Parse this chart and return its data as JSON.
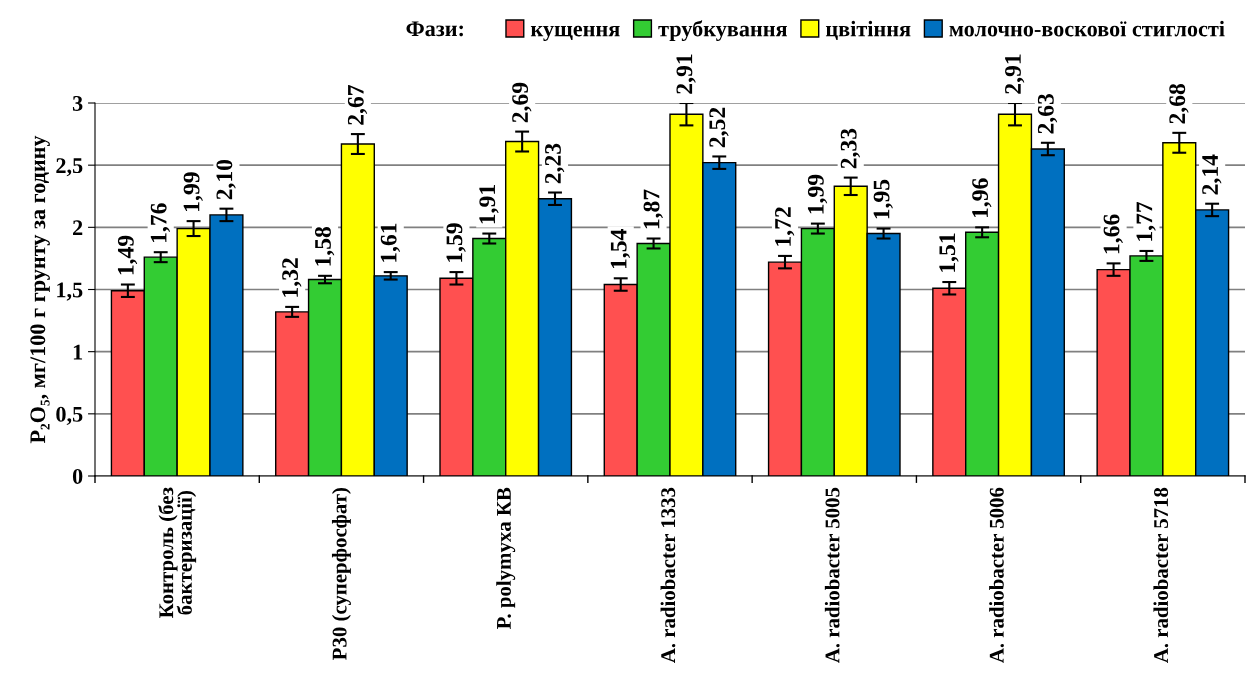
{
  "chart_data": {
    "type": "bar",
    "ylabel": "P₂O₅, мг/100 г грунту за годину",
    "legend_title": "Фази:",
    "legend": "top",
    "categories": [
      "Контроль (без\nбактеризації)",
      "Р30 (суперфосфат)",
      "P. polymyxa КВ",
      "A. radiobacter 1333",
      "A. radiobacter 5005",
      "A. radiobacter 5006",
      "A. radiobacter 5718"
    ],
    "series": [
      {
        "name": "кущення",
        "color": "#ff5050",
        "values": [
          1.49,
          1.32,
          1.59,
          1.54,
          1.72,
          1.51,
          1.66
        ],
        "errors": [
          0.05,
          0.04,
          0.05,
          0.05,
          0.05,
          0.05,
          0.05
        ],
        "value_labels": [
          "1,49",
          "1,32",
          "1,59",
          "1,54",
          "1,72",
          "1,51",
          "1,66"
        ]
      },
      {
        "name": "трубкування",
        "color": "#33cc33",
        "values": [
          1.76,
          1.58,
          1.91,
          1.87,
          1.99,
          1.96,
          1.77
        ],
        "errors": [
          0.04,
          0.03,
          0.04,
          0.04,
          0.04,
          0.04,
          0.04
        ],
        "value_labels": [
          "1,76",
          "1,58",
          "1,91",
          "1,87",
          "1,99",
          "1,96",
          "1,77"
        ]
      },
      {
        "name": "цвітіння",
        "color": "#ffff00",
        "values": [
          1.99,
          2.67,
          2.69,
          2.91,
          2.33,
          2.91,
          2.68
        ],
        "errors": [
          0.06,
          0.08,
          0.08,
          0.09,
          0.07,
          0.09,
          0.08
        ],
        "value_labels": [
          "1,99",
          "2,67",
          "2,69",
          "2,91",
          "2,33",
          "2,91",
          "2,68"
        ]
      },
      {
        "name": "молочно-воскової стиглості",
        "color": "#0070c0",
        "values": [
          2.1,
          1.61,
          2.23,
          2.52,
          1.95,
          2.63,
          2.14
        ],
        "errors": [
          0.05,
          0.03,
          0.05,
          0.05,
          0.04,
          0.05,
          0.05
        ],
        "value_labels": [
          "2,10",
          "1,61",
          "2,23",
          "2,52",
          "1,95",
          "2,63",
          "2,14"
        ]
      }
    ],
    "ylim": [
      0,
      3
    ],
    "yticks": [
      0,
      {
        "value": 0.5,
        "label": "0,5"
      },
      1,
      {
        "value": 1.5,
        "label": "1,5"
      },
      2,
      {
        "value": 2.5,
        "label": "2,5"
      },
      3
    ],
    "grid": "y"
  }
}
